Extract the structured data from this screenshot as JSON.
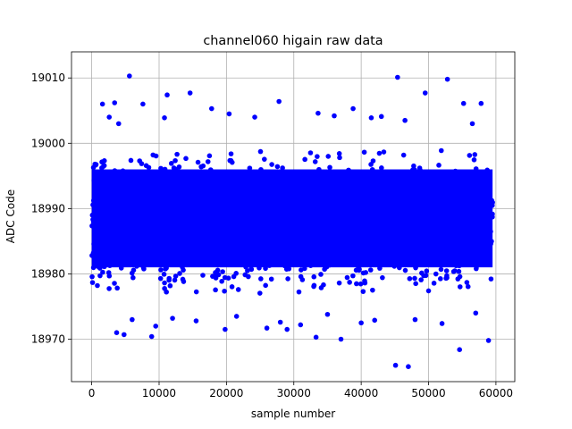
{
  "chart_data": {
    "type": "scatter",
    "title": "channel060 higain raw data",
    "xlabel": "sample number",
    "ylabel": "ADC Code",
    "xlim": [
      -3000,
      62800
    ],
    "ylim": [
      18963.5,
      19014
    ],
    "xticks": [
      0,
      10000,
      20000,
      30000,
      40000,
      50000,
      60000
    ],
    "xtick_labels": [
      "0",
      "10000",
      "20000",
      "30000",
      "40000",
      "50000",
      "60000"
    ],
    "yticks": [
      18970,
      18980,
      18990,
      19000,
      19010
    ],
    "ytick_labels": [
      "18970",
      "18980",
      "18990",
      "19000",
      "19010"
    ],
    "grid": true,
    "marker_color": "#0000ff",
    "series": [
      {
        "dense_band": {
          "x_range": [
            0,
            59500
          ],
          "y_range": [
            18978,
            18998
          ]
        },
        "x": [
          5600,
          45400,
          52800,
          11200,
          14600,
          49500,
          1600,
          3400,
          7600,
          17800,
          27800,
          38800,
          55200,
          57800,
          2600,
          20400,
          33600,
          43000,
          36000,
          24200,
          10800,
          4000,
          46500,
          56500,
          41500,
          3700,
          4800,
          8900,
          19800,
          26000,
          29000,
          33300,
          37000,
          45100,
          54600,
          58900,
          47000,
          6000,
          12000,
          15500,
          21500,
          31000,
          35000,
          40000,
          48000,
          52000,
          57000,
          9500,
          42000,
          28000
        ],
        "y": [
          19010.3,
          19010.1,
          19009.8,
          19007.4,
          19007.7,
          19007.7,
          19006.0,
          19006.2,
          19006.0,
          19005.3,
          19006.4,
          19005.3,
          19006.1,
          19006.1,
          19004.0,
          19004.5,
          19004.6,
          19004.1,
          19004.2,
          19004.0,
          19003.9,
          19003.0,
          19003.5,
          19003.0,
          19003.9,
          18971.0,
          18970.7,
          18970.4,
          18971.5,
          18971.7,
          18971.5,
          18970.3,
          18970.0,
          18966.0,
          18968.4,
          18969.8,
          18965.8,
          18973.0,
          18973.2,
          18972.8,
          18973.5,
          18972.2,
          18973.8,
          18972.5,
          18973.0,
          18972.4,
          18974.0,
          18972.0,
          18972.9,
          18972.6
        ]
      }
    ]
  }
}
